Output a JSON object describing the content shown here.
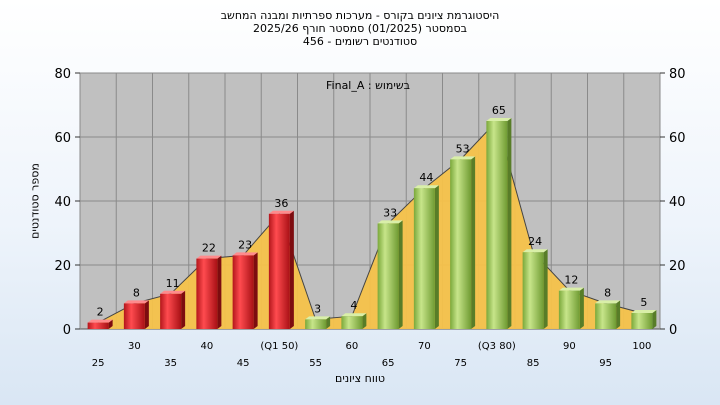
{
  "chart_data": {
    "type": "bar",
    "title_lines": [
      "היסטוגרמת ציונים בקורס - מערכות ספרתיות ומבנה המחשב",
      "בסמסטר  (01/2025)  סמסטר חורף  2025/26",
      "סטודנטים רשומים - 456"
    ],
    "ylabel": "מספר סטודנטים",
    "xlabel": "טווח ציונים",
    "note": "בשימוש : Final_A",
    "ylim": [
      0,
      80
    ],
    "yticks": [
      0,
      20,
      40,
      60,
      80
    ],
    "categories": [
      "25",
      "30",
      "35",
      "40",
      "45",
      "(Q1 50)",
      "55",
      "60",
      "65",
      "70",
      "75",
      "(Q3 80)",
      "85",
      "90",
      "95",
      "100"
    ],
    "values": [
      2,
      8,
      11,
      22,
      23,
      36,
      3,
      4,
      33,
      44,
      53,
      65,
      24,
      12,
      8,
      5
    ],
    "bar_colors": [
      "red",
      "red",
      "red",
      "red",
      "red",
      "red",
      "green",
      "green",
      "green",
      "green",
      "green",
      "green",
      "green",
      "green",
      "green",
      "green"
    ],
    "grid": true,
    "colors": {
      "plot_bg": "#c0c0c0",
      "area_fill": "#f6c24a",
      "red_bar": "#e8262b",
      "green_bar": "#9ccb4e"
    }
  }
}
